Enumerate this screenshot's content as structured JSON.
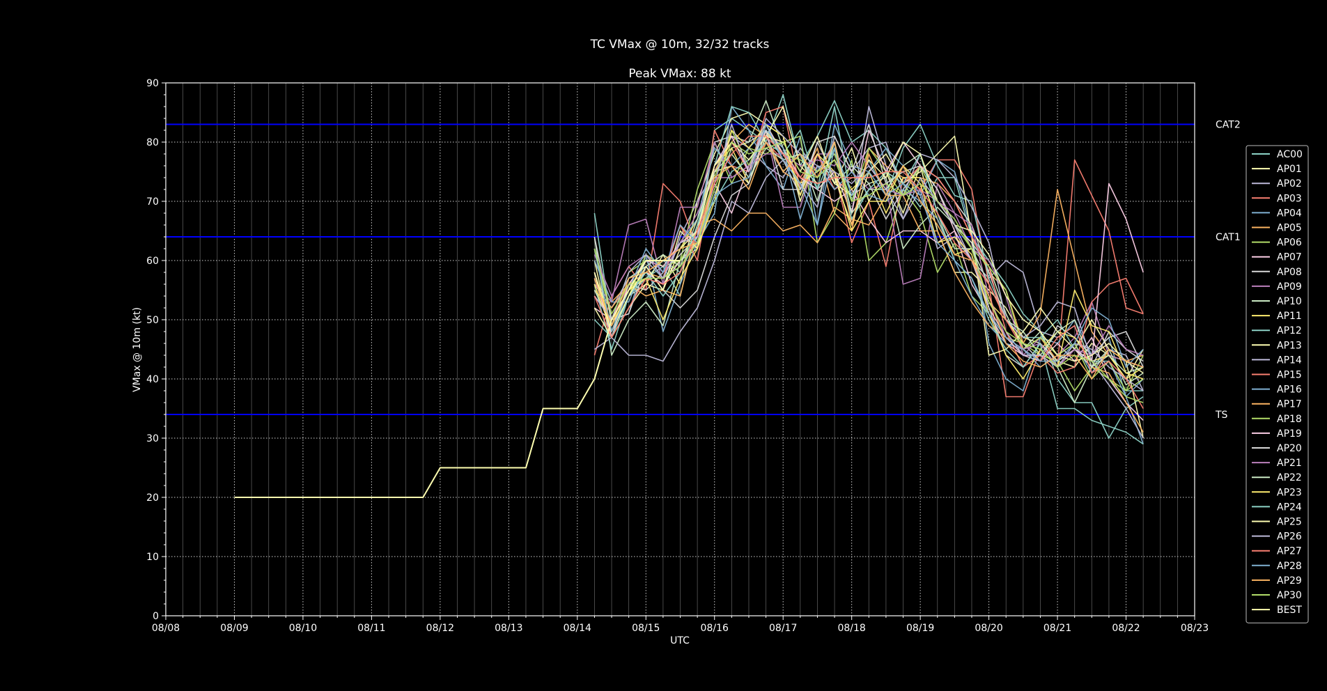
{
  "chart_data": {
    "type": "line",
    "title": "TC VMax @ 10m, 32/32 tracks",
    "subtitle": "Peak VMax: 88 kt",
    "xlabel": "UTC",
    "ylabel": "VMax @ 10m (kt)",
    "x_ticks": [
      "08/08",
      "08/09",
      "08/10",
      "08/11",
      "08/12",
      "08/13",
      "08/14",
      "08/15",
      "08/16",
      "08/17",
      "08/18",
      "08/19",
      "08/20",
      "08/21",
      "08/22",
      "08/23"
    ],
    "ylim": [
      0,
      90
    ],
    "y_ticks": [
      "0",
      "10",
      "20",
      "30",
      "40",
      "50",
      "60",
      "70",
      "80",
      "90"
    ],
    "grid": true,
    "legend_position": "right",
    "thresholds": [
      {
        "label": "TS",
        "value": 34
      },
      {
        "label": "CAT1",
        "value": 64
      },
      {
        "label": "CAT2",
        "value": 83
      }
    ],
    "colors": {
      "background": "#000000",
      "threshold": "#0000ff",
      "best": "#ffffb0",
      "palette": [
        "#8dd3c7",
        "#ffffb3",
        "#bebada",
        "#fb8072",
        "#80b1d3",
        "#fdb462",
        "#b3de69",
        "#fccde5",
        "#d9d9d9",
        "#bc80bd",
        "#ccebc5",
        "#ffed6f"
      ]
    },
    "best_track": {
      "name": "BEST",
      "x": [
        1.0,
        1.75,
        2.0,
        2.25,
        2.5,
        2.75,
        3.0,
        3.25,
        3.5,
        3.75,
        4.0,
        4.25,
        4.5,
        4.75,
        5.0,
        5.25,
        5.5,
        5.75,
        6.0,
        6.25,
        6.5,
        6.75,
        7.0,
        7.25,
        7.5
      ],
      "values": [
        20,
        20,
        20,
        20,
        20,
        20,
        20,
        20,
        20,
        20,
        25,
        25,
        25,
        25,
        25,
        25,
        35,
        35,
        35,
        40,
        50,
        55,
        60,
        60,
        60
      ]
    },
    "series_names": [
      "AC00",
      "AP01",
      "AP02",
      "AP03",
      "AP04",
      "AP05",
      "AP06",
      "AP07",
      "AP08",
      "AP09",
      "AP10",
      "AP11",
      "AP12",
      "AP13",
      "AP14",
      "AP15",
      "AP16",
      "AP17",
      "AP18",
      "AP19",
      "AP20",
      "AP21",
      "AP22",
      "AP23",
      "AP24",
      "AP25",
      "AP26",
      "AP27",
      "AP28",
      "AP29",
      "AP30"
    ],
    "ensemble_x": [
      6.25,
      6.5,
      6.75,
      7.0,
      7.25,
      7.5,
      7.75,
      8.0,
      8.25,
      8.5,
      8.75,
      9.0,
      9.25,
      9.5,
      9.75,
      10.0,
      10.25,
      10.5,
      10.75,
      11.0,
      11.25,
      11.5,
      11.75,
      12.0,
      12.25,
      12.5,
      12.75,
      13.0,
      13.25,
      13.5,
      13.75,
      14.0,
      14.25
    ],
    "series": [
      {
        "name": "AC00",
        "values": [
          68,
          49,
          55,
          57,
          60,
          58,
          64,
          82,
          84,
          82,
          80,
          88,
          76,
          81,
          87,
          80,
          82,
          79,
          73,
          69,
          74,
          74,
          64,
          60,
          56,
          51,
          48,
          40,
          36,
          36,
          30,
          35,
          37
        ]
      },
      {
        "name": "AP01",
        "values": [
          60,
          47,
          54,
          56,
          61,
          56,
          70,
          78,
          84,
          85,
          83,
          81,
          70,
          78,
          73,
          79,
          70,
          75,
          68,
          76,
          65,
          58,
          58,
          55,
          52,
          47,
          46,
          43,
          42,
          46,
          44,
          40,
          45
        ]
      },
      {
        "name": "AP02",
        "values": [
          56,
          52,
          57,
          59,
          55,
          64,
          70,
          75,
          81,
          79,
          76,
          74,
          79,
          75,
          80,
          68,
          86,
          76,
          67,
          72,
          62,
          64,
          60,
          57,
          60,
          58,
          48,
          47,
          49,
          41,
          45,
          44,
          38
        ]
      },
      {
        "name": "AP03",
        "values": [
          44,
          54,
          59,
          55,
          73,
          70,
          62,
          82,
          76,
          75,
          85,
          86,
          72,
          76,
          75,
          63,
          70,
          59,
          74,
          72,
          77,
          77,
          72,
          56,
          37,
          37,
          45,
          42,
          77,
          71,
          65,
          52,
          51
        ]
      },
      {
        "name": "AP04",
        "values": [
          54,
          50,
          51,
          61,
          48,
          56,
          63,
          68,
          86,
          82,
          76,
          72,
          81,
          66,
          83,
          76,
          75,
          79,
          76,
          71,
          77,
          75,
          65,
          46,
          40,
          38,
          47,
          46,
          50,
          44,
          47,
          37,
          29
        ]
      },
      {
        "name": "AP05",
        "values": [
          60,
          53,
          56,
          58,
          57,
          66,
          62,
          75,
          80,
          83,
          81,
          75,
          73,
          79,
          68,
          65,
          79,
          76,
          74,
          74,
          73,
          70,
          64,
          58,
          55,
          46,
          51,
          72,
          60,
          48,
          44,
          43,
          44
        ]
      },
      {
        "name": "AP06",
        "values": [
          62,
          50,
          58,
          60,
          57,
          60,
          72,
          80,
          73,
          79,
          78,
          80,
          81,
          63,
          68,
          77,
          60,
          63,
          72,
          68,
          58,
          63,
          54,
          51,
          47,
          46,
          44,
          43,
          38,
          42,
          40,
          38,
          44
        ]
      },
      {
        "name": "AP07",
        "values": [
          52,
          50,
          55,
          58,
          56,
          60,
          63,
          73,
          68,
          76,
          82,
          79,
          74,
          72,
          70,
          72,
          67,
          63,
          65,
          65,
          63,
          65,
          56,
          51,
          46,
          44,
          43,
          46,
          43,
          47,
          40,
          36,
          33
        ]
      },
      {
        "name": "AP08",
        "values": [
          57,
          48,
          56,
          55,
          58,
          61,
          64,
          80,
          81,
          80,
          82,
          77,
          71,
          80,
          74,
          71,
          73,
          67,
          72,
          76,
          74,
          70,
          66,
          58,
          50,
          46,
          43,
          49,
          47,
          44,
          47,
          48,
          42
        ]
      },
      {
        "name": "AP09",
        "values": [
          56,
          53,
          66,
          67,
          56,
          69,
          69,
          80,
          74,
          76,
          82,
          69,
          69,
          78,
          78,
          75,
          72,
          73,
          56,
          57,
          73,
          68,
          62,
          60,
          54,
          44,
          47,
          44,
          47,
          53,
          44,
          43,
          42
        ]
      },
      {
        "name": "AP10",
        "values": [
          64,
          44,
          50,
          53,
          49,
          60,
          62,
          71,
          79,
          80,
          87,
          79,
          72,
          78,
          73,
          76,
          73,
          74,
          62,
          66,
          69,
          66,
          63,
          59,
          51,
          45,
          48,
          42,
          36,
          42,
          45,
          39,
          41
        ]
      },
      {
        "name": "AP11",
        "values": [
          58,
          49,
          55,
          58,
          60,
          62,
          67,
          76,
          79,
          73,
          82,
          78,
          73,
          75,
          77,
          72,
          75,
          68,
          74,
          74,
          67,
          61,
          62,
          53,
          50,
          46,
          45,
          48,
          47,
          43,
          44,
          40,
          42
        ]
      },
      {
        "name": "AP12",
        "values": [
          56,
          45,
          54,
          57,
          59,
          54,
          66,
          76,
          86,
          85,
          80,
          78,
          82,
          72,
          86,
          70,
          77,
          71,
          79,
          83,
          76,
          71,
          70,
          57,
          50,
          47,
          47,
          50,
          45,
          43,
          43,
          38,
          38
        ]
      },
      {
        "name": "AP13",
        "values": [
          52,
          47,
          52,
          56,
          55,
          65,
          62,
          75,
          76,
          73,
          81,
          86,
          76,
          73,
          74,
          66,
          75,
          78,
          73,
          75,
          78,
          81,
          64,
          44,
          45,
          48,
          52,
          48,
          45,
          50,
          45,
          43,
          30
        ]
      },
      {
        "name": "AP14",
        "values": [
          45,
          47,
          44,
          44,
          43,
          48,
          52,
          60,
          70,
          68,
          74,
          77,
          73,
          69,
          81,
          75,
          79,
          80,
          71,
          78,
          77,
          74,
          69,
          63,
          50,
          47,
          49,
          53,
          52,
          43,
          39,
          35,
          30
        ]
      },
      {
        "name": "AP15",
        "values": [
          54,
          50,
          56,
          60,
          57,
          66,
          60,
          76,
          80,
          75,
          80,
          77,
          74,
          78,
          72,
          74,
          74,
          75,
          73,
          76,
          74,
          70,
          64,
          59,
          48,
          42,
          44,
          41,
          42,
          53,
          56,
          57,
          51
        ]
      },
      {
        "name": "AP16",
        "values": [
          60,
          53,
          53,
          60,
          57,
          63,
          67,
          79,
          76,
          79,
          82,
          79,
          67,
          76,
          72,
          75,
          71,
          70,
          72,
          70,
          67,
          60,
          54,
          49,
          46,
          45,
          42,
          44,
          46,
          41,
          43,
          37,
          40
        ]
      },
      {
        "name": "AP17",
        "values": [
          55,
          52,
          56,
          54,
          55,
          54,
          66,
          67,
          65,
          68,
          68,
          65,
          66,
          63,
          69,
          67,
          66,
          71,
          71,
          65,
          65,
          58,
          53,
          49,
          47,
          45,
          47,
          43,
          45,
          42,
          41,
          36,
          31
        ]
      },
      {
        "name": "AP18",
        "values": [
          62,
          48,
          54,
          61,
          59,
          60,
          65,
          74,
          82,
          76,
          83,
          78,
          77,
          75,
          78,
          70,
          79,
          75,
          71,
          76,
          70,
          66,
          62,
          59,
          55,
          45,
          47,
          44,
          46,
          40,
          43,
          38,
          40
        ]
      },
      {
        "name": "AP19",
        "values": [
          58,
          47,
          56,
          60,
          59,
          63,
          65,
          76,
          81,
          75,
          83,
          78,
          74,
          72,
          75,
          68,
          82,
          75,
          80,
          76,
          72,
          65,
          60,
          52,
          47,
          44,
          44,
          42,
          45,
          43,
          73,
          67,
          58
        ]
      },
      {
        "name": "AP20",
        "values": [
          64,
          50,
          51,
          59,
          55,
          52,
          55,
          64,
          71,
          73,
          82,
          72,
          72,
          80,
          81,
          75,
          83,
          73,
          75,
          76,
          72,
          66,
          63,
          52,
          44,
          42,
          46,
          43,
          45,
          42,
          48,
          45,
          43
        ]
      },
      {
        "name": "AP21",
        "values": [
          61,
          54,
          59,
          61,
          58,
          63,
          68,
          74,
          74,
          76,
          78,
          78,
          76,
          77,
          76,
          80,
          76,
          72,
          71,
          72,
          70,
          68,
          66,
          54,
          47,
          45,
          46,
          42,
          45,
          44,
          49,
          45,
          44
        ]
      },
      {
        "name": "AP22",
        "values": [
          55,
          49,
          57,
          59,
          61,
          59,
          67,
          75,
          78,
          74,
          79,
          77,
          78,
          70,
          80,
          68,
          72,
          72,
          76,
          78,
          68,
          62,
          62,
          56,
          50,
          48,
          44,
          48,
          50,
          42,
          44,
          41,
          42
        ]
      },
      {
        "name": "AP23",
        "values": [
          56,
          48,
          55,
          57,
          50,
          57,
          62,
          70,
          82,
          79,
          83,
          81,
          71,
          78,
          75,
          65,
          70,
          70,
          76,
          73,
          63,
          64,
          61,
          51,
          44,
          40,
          45,
          42,
          55,
          49,
          48,
          41,
          40
        ]
      },
      {
        "name": "AP24",
        "values": [
          50,
          47,
          54,
          58,
          54,
          58,
          66,
          70,
          75,
          77,
          80,
          75,
          78,
          72,
          79,
          67,
          72,
          75,
          73,
          78,
          68,
          60,
          57,
          50,
          45,
          42,
          46,
          35,
          35,
          33,
          32,
          31,
          29
        ]
      },
      {
        "name": "AP25",
        "values": [
          58,
          48,
          54,
          59,
          55,
          62,
          65,
          76,
          80,
          77,
          81,
          80,
          75,
          81,
          73,
          71,
          77,
          74,
          80,
          78,
          70,
          66,
          65,
          61,
          54,
          50,
          48,
          44,
          43,
          44,
          46,
          43,
          41
        ]
      },
      {
        "name": "AP26",
        "values": [
          54,
          50,
          58,
          61,
          57,
          63,
          64,
          73,
          83,
          75,
          84,
          81,
          78,
          76,
          75,
          73,
          76,
          72,
          67,
          74,
          70,
          66,
          60,
          53,
          48,
          44,
          44,
          42,
          46,
          45,
          42,
          40,
          38
        ]
      },
      {
        "name": "AP27",
        "values": [
          54,
          47,
          52,
          57,
          56,
          58,
          65,
          73,
          78,
          81,
          81,
          78,
          74,
          73,
          74,
          74,
          74,
          75,
          75,
          72,
          68,
          63,
          60,
          56,
          50,
          45,
          43,
          47,
          49,
          41,
          43,
          40,
          35
        ]
      },
      {
        "name": "AP28",
        "values": [
          62,
          48,
          55,
          62,
          58,
          66,
          63,
          71,
          73,
          74,
          83,
          77,
          73,
          66,
          79,
          71,
          75,
          71,
          73,
          71,
          63,
          60,
          57,
          51,
          47,
          45,
          43,
          43,
          46,
          52,
          50,
          42,
          45
        ]
      },
      {
        "name": "AP29",
        "values": [
          57,
          49,
          57,
          58,
          60,
          62,
          63,
          74,
          76,
          72,
          80,
          75,
          78,
          74,
          80,
          66,
          78,
          71,
          76,
          70,
          66,
          61,
          60,
          54,
          46,
          43,
          42,
          44,
          44,
          40,
          45,
          43,
          42
        ]
      },
      {
        "name": "AP30",
        "values": [
          62,
          51,
          56,
          57,
          57,
          59,
          63,
          72,
          80,
          78,
          79,
          80,
          75,
          74,
          77,
          70,
          71,
          73,
          71,
          73,
          70,
          67,
          62,
          53,
          48,
          46,
          45,
          42,
          44,
          43,
          40,
          37,
          36
        ]
      }
    ]
  }
}
